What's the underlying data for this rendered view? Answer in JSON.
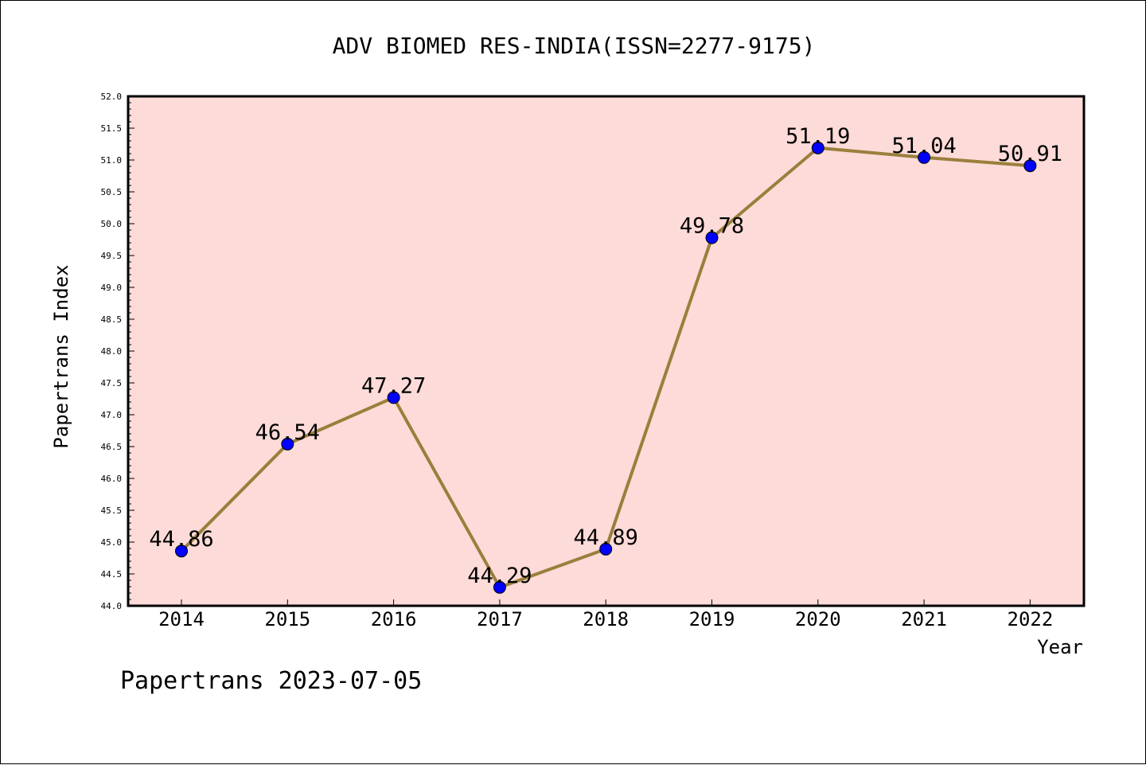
{
  "chart_data": {
    "type": "line",
    "title": "ADV BIOMED RES-INDIA(ISSN=2277-9175)",
    "xlabel": "Year",
    "ylabel": "Papertrans Index",
    "categories": [
      "2014",
      "2015",
      "2016",
      "2017",
      "2018",
      "2019",
      "2020",
      "2021",
      "2022"
    ],
    "values": [
      44.86,
      46.54,
      47.27,
      44.29,
      44.89,
      49.78,
      51.19,
      51.04,
      50.91
    ],
    "data_labels": [
      "44.86",
      "46.54",
      "47.27",
      "44.29",
      "44.89",
      "49.78",
      "51.19",
      "51.04",
      "50.91"
    ],
    "ylim": [
      44.0,
      52.0
    ],
    "yticks": [
      "44.0",
      "44.5",
      "45.0",
      "45.5",
      "46.0",
      "46.5",
      "47.0",
      "47.5",
      "48.0",
      "48.5",
      "49.0",
      "49.5",
      "50.0",
      "50.5",
      "51.0",
      "51.5",
      "52.0"
    ],
    "grid": false,
    "colors": {
      "plot_background": "#fddbd8",
      "line": "#9a7f3c",
      "marker": "#0000ff"
    }
  },
  "footer": "Papertrans 2023-07-05"
}
